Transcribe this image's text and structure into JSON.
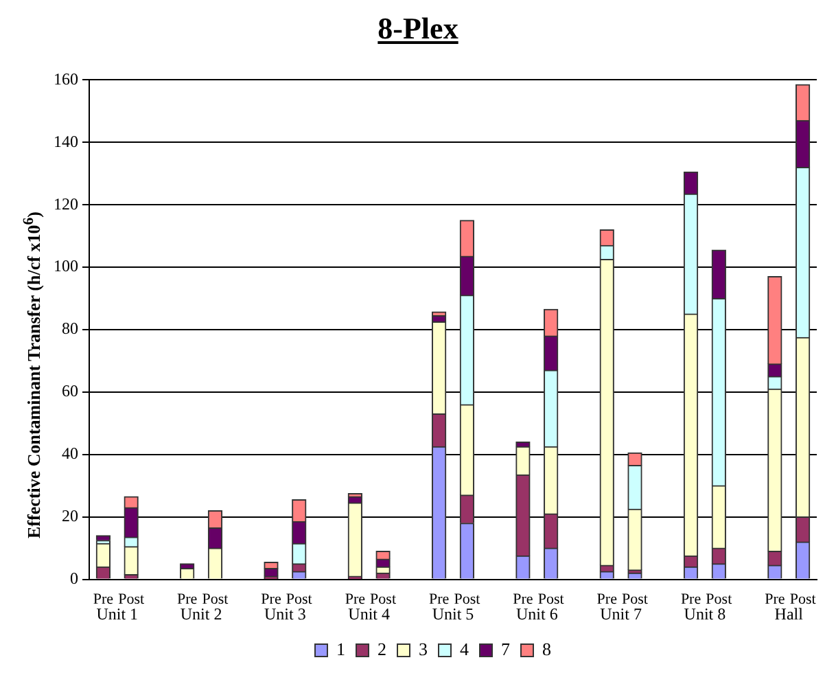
{
  "chart_data": {
    "type": "bar",
    "title": "8-Plex",
    "ylabel": "Effective Contaminant Transfer (h/cf x10$^{6}$)",
    "categories": [
      "Pre",
      "Post",
      null,
      "Pre",
      "Post",
      null,
      "Pre",
      "Post",
      null,
      "Pre",
      "Post",
      null,
      "Pre",
      "Post",
      null,
      "Pre",
      "Post",
      null,
      "Pre",
      "Post",
      null,
      "Pre",
      "Post",
      null,
      "Pre",
      "Post"
    ],
    "annotations": [
      "Unit 1",
      "Unit 2",
      "Unit 3",
      "Unit 4",
      "Unit 5",
      "Unit 6",
      "Unit 7",
      "Unit 8",
      "Hall"
    ],
    "stacked": true,
    "series": [
      {
        "name": "1",
        "color": "#9999ff",
        "values": [
          0,
          0,
          null,
          0,
          0,
          null,
          0,
          2.5,
          null,
          0,
          0,
          null,
          42.5,
          18,
          null,
          7.5,
          10,
          null,
          2.5,
          2,
          null,
          4,
          5,
          null,
          4.5,
          12
        ]
      },
      {
        "name": "2",
        "color": "#993366",
        "values": [
          4,
          1.5,
          null,
          0,
          0,
          null,
          1,
          2.5,
          null,
          1,
          2,
          null,
          10.5,
          9,
          null,
          26,
          11,
          null,
          2,
          1,
          null,
          3.5,
          5,
          null,
          4.5,
          8
        ]
      },
      {
        "name": "3",
        "color": "#ffffcc",
        "values": [
          7.5,
          9,
          null,
          3.5,
          10,
          null,
          0,
          0,
          null,
          23.5,
          2,
          null,
          29.5,
          29,
          null,
          9,
          21.5,
          null,
          98,
          19.5,
          null,
          77.5,
          20,
          null,
          52,
          57.5
        ]
      },
      {
        "name": "4",
        "color": "#ccffff",
        "values": [
          1,
          3,
          null,
          0,
          0,
          null,
          0,
          6.5,
          null,
          0,
          0,
          null,
          0,
          35,
          null,
          0,
          24.5,
          null,
          4.5,
          14,
          null,
          38.5,
          60,
          null,
          4,
          54.5
        ]
      },
      {
        "name": "7",
        "color": "#660066",
        "values": [
          1.5,
          9.5,
          null,
          1.5,
          6.5,
          null,
          2.5,
          7,
          null,
          2,
          2.5,
          null,
          2,
          12.5,
          null,
          1.5,
          11,
          null,
          0,
          0,
          null,
          7,
          15.5,
          null,
          4,
          15
        ]
      },
      {
        "name": "8",
        "color": "#ff8080",
        "values": [
          0,
          3.5,
          null,
          0,
          5.5,
          null,
          2,
          7,
          null,
          1,
          2.5,
          null,
          1.2,
          11.5,
          null,
          0,
          8.5,
          null,
          5,
          4,
          null,
          0,
          0,
          null,
          28,
          11.5
        ]
      }
    ],
    "ylim": [
      0,
      160
    ],
    "yticks": [
      0,
      20,
      40,
      60,
      80,
      100,
      120,
      140,
      160
    ],
    "grid": "y",
    "legend": "bottom"
  }
}
